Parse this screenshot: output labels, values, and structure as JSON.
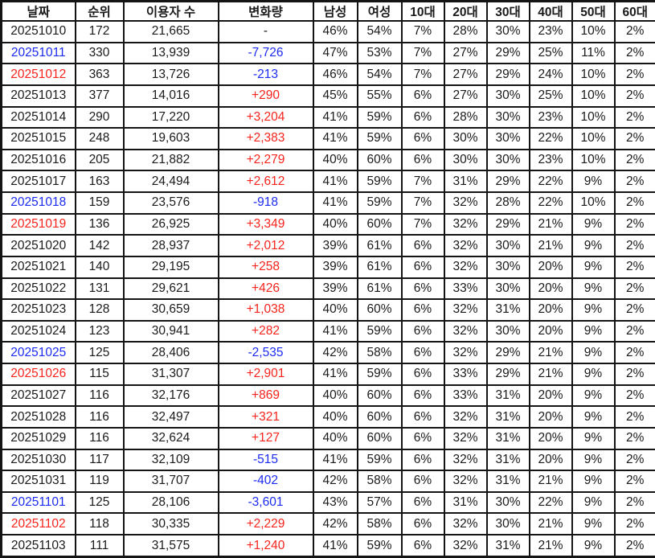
{
  "table": {
    "headers": [
      "날짜",
      "순위",
      "이용자 수",
      "변화량",
      "남성",
      "여성",
      "10대",
      "20대",
      "30대",
      "40대",
      "50대",
      "60대"
    ],
    "colors": {
      "default": "#1a1a1a",
      "up": "#f6241c",
      "down": "#1b2bf2"
    },
    "rows": [
      {
        "cells": [
          "20251010",
          "172",
          "21,665",
          "-",
          "46%",
          "54%",
          "7%",
          "28%",
          "30%",
          "23%",
          "10%",
          "2%"
        ],
        "date_color": "default",
        "change_color": "default"
      },
      {
        "cells": [
          "20251011",
          "330",
          "13,939",
          "-7,726",
          "47%",
          "53%",
          "7%",
          "27%",
          "29%",
          "25%",
          "11%",
          "2%"
        ],
        "date_color": "down",
        "change_color": "down"
      },
      {
        "cells": [
          "20251012",
          "363",
          "13,726",
          "-213",
          "46%",
          "54%",
          "7%",
          "27%",
          "29%",
          "24%",
          "10%",
          "2%"
        ],
        "date_color": "up",
        "change_color": "down"
      },
      {
        "cells": [
          "20251013",
          "377",
          "14,016",
          "+290",
          "45%",
          "55%",
          "6%",
          "27%",
          "30%",
          "25%",
          "10%",
          "2%"
        ],
        "date_color": "default",
        "change_color": "up"
      },
      {
        "cells": [
          "20251014",
          "290",
          "17,220",
          "+3,204",
          "41%",
          "59%",
          "6%",
          "28%",
          "30%",
          "23%",
          "10%",
          "2%"
        ],
        "date_color": "default",
        "change_color": "up"
      },
      {
        "cells": [
          "20251015",
          "248",
          "19,603",
          "+2,383",
          "41%",
          "59%",
          "6%",
          "30%",
          "30%",
          "22%",
          "10%",
          "2%"
        ],
        "date_color": "default",
        "change_color": "up"
      },
      {
        "cells": [
          "20251016",
          "205",
          "21,882",
          "+2,279",
          "40%",
          "60%",
          "6%",
          "30%",
          "30%",
          "23%",
          "10%",
          "2%"
        ],
        "date_color": "default",
        "change_color": "up"
      },
      {
        "cells": [
          "20251017",
          "163",
          "24,494",
          "+2,612",
          "41%",
          "59%",
          "7%",
          "31%",
          "29%",
          "22%",
          "9%",
          "2%"
        ],
        "date_color": "default",
        "change_color": "up"
      },
      {
        "cells": [
          "20251018",
          "159",
          "23,576",
          "-918",
          "41%",
          "59%",
          "7%",
          "32%",
          "28%",
          "22%",
          "10%",
          "2%"
        ],
        "date_color": "down",
        "change_color": "down"
      },
      {
        "cells": [
          "20251019",
          "136",
          "26,925",
          "+3,349",
          "40%",
          "60%",
          "7%",
          "32%",
          "29%",
          "21%",
          "9%",
          "2%"
        ],
        "date_color": "up",
        "change_color": "up"
      },
      {
        "cells": [
          "20251020",
          "142",
          "28,937",
          "+2,012",
          "39%",
          "61%",
          "6%",
          "32%",
          "30%",
          "21%",
          "9%",
          "2%"
        ],
        "date_color": "default",
        "change_color": "up"
      },
      {
        "cells": [
          "20251021",
          "140",
          "29,195",
          "+258",
          "39%",
          "61%",
          "6%",
          "32%",
          "30%",
          "20%",
          "9%",
          "2%"
        ],
        "date_color": "default",
        "change_color": "up"
      },
      {
        "cells": [
          "20251022",
          "131",
          "29,621",
          "+426",
          "39%",
          "61%",
          "6%",
          "33%",
          "30%",
          "20%",
          "9%",
          "2%"
        ],
        "date_color": "default",
        "change_color": "up"
      },
      {
        "cells": [
          "20251023",
          "128",
          "30,659",
          "+1,038",
          "40%",
          "60%",
          "6%",
          "32%",
          "31%",
          "20%",
          "9%",
          "2%"
        ],
        "date_color": "default",
        "change_color": "up"
      },
      {
        "cells": [
          "20251024",
          "123",
          "30,941",
          "+282",
          "41%",
          "59%",
          "6%",
          "32%",
          "30%",
          "20%",
          "9%",
          "2%"
        ],
        "date_color": "default",
        "change_color": "up"
      },
      {
        "cells": [
          "20251025",
          "125",
          "28,406",
          "-2,535",
          "42%",
          "58%",
          "6%",
          "32%",
          "29%",
          "21%",
          "9%",
          "2%"
        ],
        "date_color": "down",
        "change_color": "down"
      },
      {
        "cells": [
          "20251026",
          "115",
          "31,307",
          "+2,901",
          "41%",
          "59%",
          "6%",
          "33%",
          "29%",
          "21%",
          "9%",
          "2%"
        ],
        "date_color": "up",
        "change_color": "up"
      },
      {
        "cells": [
          "20251027",
          "116",
          "32,176",
          "+869",
          "40%",
          "60%",
          "6%",
          "33%",
          "31%",
          "20%",
          "9%",
          "2%"
        ],
        "date_color": "default",
        "change_color": "up"
      },
      {
        "cells": [
          "20251028",
          "116",
          "32,497",
          "+321",
          "40%",
          "60%",
          "6%",
          "32%",
          "31%",
          "20%",
          "9%",
          "2%"
        ],
        "date_color": "default",
        "change_color": "up"
      },
      {
        "cells": [
          "20251029",
          "116",
          "32,624",
          "+127",
          "40%",
          "60%",
          "6%",
          "32%",
          "31%",
          "20%",
          "9%",
          "2%"
        ],
        "date_color": "default",
        "change_color": "up"
      },
      {
        "cells": [
          "20251030",
          "117",
          "32,109",
          "-515",
          "41%",
          "59%",
          "6%",
          "32%",
          "31%",
          "20%",
          "9%",
          "2%"
        ],
        "date_color": "default",
        "change_color": "down"
      },
      {
        "cells": [
          "20251031",
          "119",
          "31,707",
          "-402",
          "42%",
          "58%",
          "6%",
          "32%",
          "31%",
          "21%",
          "9%",
          "2%"
        ],
        "date_color": "default",
        "change_color": "down"
      },
      {
        "cells": [
          "20251101",
          "125",
          "28,106",
          "-3,601",
          "43%",
          "57%",
          "6%",
          "31%",
          "30%",
          "22%",
          "9%",
          "2%"
        ],
        "date_color": "down",
        "change_color": "down"
      },
      {
        "cells": [
          "20251102",
          "118",
          "30,335",
          "+2,229",
          "42%",
          "58%",
          "6%",
          "32%",
          "30%",
          "21%",
          "9%",
          "2%"
        ],
        "date_color": "up",
        "change_color": "up"
      },
      {
        "cells": [
          "20251103",
          "111",
          "31,575",
          "+1,240",
          "41%",
          "59%",
          "6%",
          "32%",
          "31%",
          "21%",
          "9%",
          "2%"
        ],
        "date_color": "default",
        "change_color": "up"
      }
    ]
  }
}
